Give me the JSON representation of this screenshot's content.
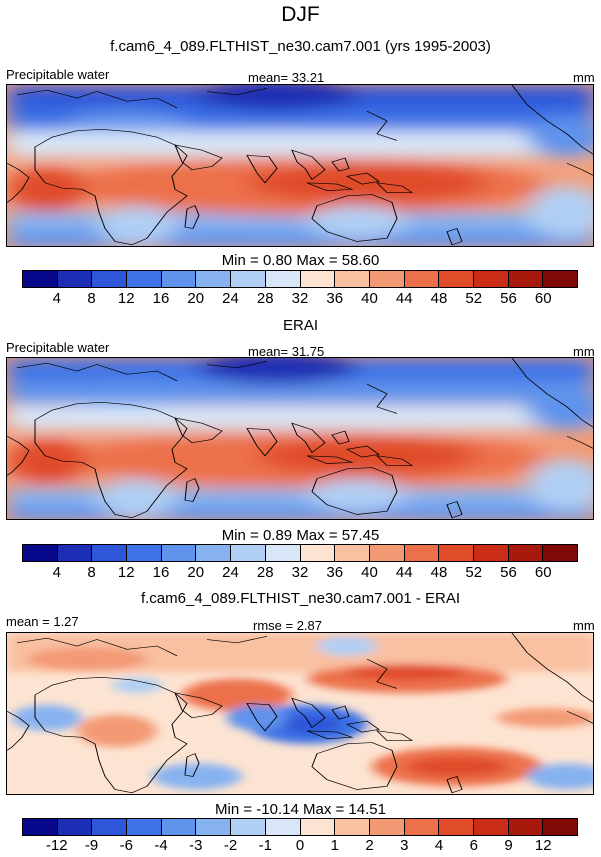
{
  "figure": {
    "title": "DJF",
    "subtitle": "f.cam6_4_089.FLTHIST_ne30.cam7.001 (yrs 1995-2003)"
  },
  "panels": [
    {
      "id": "model",
      "header_title": "",
      "left_label": "Precipitable water",
      "center_label": "mean=  33.21",
      "units": "mm",
      "minmax": "Min =   0.80 Max =  58.60",
      "colorbar": "abs"
    },
    {
      "id": "obs",
      "header_title": "ERAI",
      "left_label": "Precipitable water",
      "center_label": "mean=  31.75",
      "units": "mm",
      "minmax": "Min =   0.89 Max =  57.45",
      "colorbar": "abs"
    },
    {
      "id": "diff",
      "header_title": "f.cam6_4_089.FLTHIST_ne30.cam7.001 - ERAI",
      "left_label": "mean =   1.27",
      "center_label": "rmse =   2.87",
      "units": "mm",
      "minmax": "Min = -10.14 Max =  14.51",
      "colorbar": "diff"
    }
  ],
  "colorbars": {
    "abs": {
      "colors": [
        "#08088c",
        "#1c2eb4",
        "#2e56d8",
        "#3e72e6",
        "#5f93ec",
        "#87b2f0",
        "#b1cff4",
        "#d8e6f8",
        "#fde4d2",
        "#f9c0a1",
        "#f39a75",
        "#ec714b",
        "#e04c2a",
        "#c92d18",
        "#a8190d",
        "#7e0907"
      ],
      "ticks": [
        "4",
        "8",
        "12",
        "16",
        "20",
        "24",
        "28",
        "32",
        "36",
        "40",
        "44",
        "48",
        "52",
        "56",
        "60"
      ]
    },
    "diff": {
      "colors": [
        "#08088c",
        "#1c2eb4",
        "#2e56d8",
        "#3e72e6",
        "#5f93ec",
        "#87b2f0",
        "#b1cff4",
        "#d8e6f8",
        "#fde4d2",
        "#f9c0a1",
        "#f39a75",
        "#ec714b",
        "#e04c2a",
        "#c92d18",
        "#a8190d",
        "#7e0907"
      ],
      "ticks": [
        "-12",
        "-9",
        "-6",
        "-4",
        "-3",
        "-2",
        "-1",
        "0",
        "1",
        "2",
        "3",
        "4",
        "6",
        "9",
        "12"
      ]
    }
  }
}
